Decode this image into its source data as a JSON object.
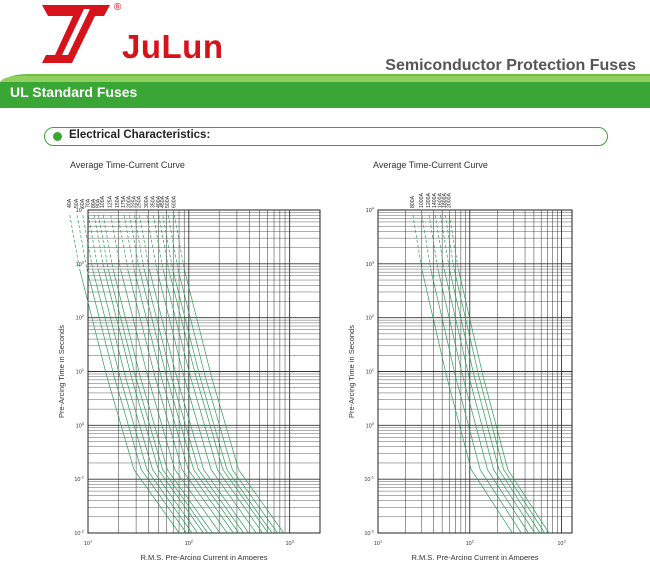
{
  "brand": {
    "name": "JuLun",
    "registered_mark": "®"
  },
  "header": {
    "title": "Semiconductor Protection Fuses"
  },
  "section": {
    "title": "UL Standard Fuses"
  },
  "subsection": {
    "title": "Electrical Characteristics:"
  },
  "colors": {
    "brand_red": "#d6121b",
    "accent_green": "#3aa635",
    "curve_green": "#2e9e55"
  },
  "chart_data": [
    {
      "type": "line",
      "title": "Average Time-Current Curve",
      "xlabel": "R.M.S. Pre-Arcing Current in Amperes",
      "ylabel": "Pre-Arcing Time in Seconds",
      "x_scale": "log",
      "y_scale": "log",
      "xlim": [
        10,
        2000
      ],
      "ylim": [
        0.01,
        10000
      ],
      "x_ticks": [
        {
          "base": "10",
          "exp": "1"
        },
        {
          "base": "10",
          "exp": "2"
        },
        {
          "base": "10",
          "exp": "3"
        }
      ],
      "y_ticks": [
        {
          "base": "10",
          "exp": "4"
        },
        {
          "base": "10",
          "exp": "3"
        },
        {
          "base": "10",
          "exp": "2"
        },
        {
          "base": "10",
          "exp": "1"
        },
        {
          "base": "10",
          "exp": "0"
        },
        {
          "base": "10",
          "exp": "-1"
        },
        {
          "base": "10",
          "exp": "-2"
        }
      ],
      "grid": true,
      "series": [
        {
          "name": "40A",
          "ratio": 0.55
        },
        {
          "name": "50A",
          "ratio": 0.65
        },
        {
          "name": "60A",
          "ratio": 0.74
        },
        {
          "name": "70A",
          "ratio": 0.84
        },
        {
          "name": "80A",
          "ratio": 0.96
        },
        {
          "name": "90A",
          "ratio": 1.06
        },
        {
          "name": "100A",
          "ratio": 1.18
        },
        {
          "name": "125A",
          "ratio": 1.4
        },
        {
          "name": "150A",
          "ratio": 1.65
        },
        {
          "name": "175A",
          "ratio": 1.9
        },
        {
          "name": "200A",
          "ratio": 2.15
        },
        {
          "name": "225A",
          "ratio": 2.4
        },
        {
          "name": "250A",
          "ratio": 2.7
        },
        {
          "name": "300A",
          "ratio": 3.2
        },
        {
          "name": "350A",
          "ratio": 3.7
        },
        {
          "name": "400A",
          "ratio": 4.2
        },
        {
          "name": "450A",
          "ratio": 4.6
        },
        {
          "name": "500A",
          "ratio": 5.2
        },
        {
          "name": "600A",
          "ratio": 6.0
        }
      ]
    },
    {
      "type": "line",
      "title": "Average Time-Current Curve",
      "xlabel": "R.M.S. Pre-Arcing Current in Amperes",
      "ylabel": "Pre-Arcing Time in Seconds",
      "x_scale": "log",
      "y_scale": "log",
      "xlim": [
        10,
        1300
      ],
      "ylim": [
        0.01,
        10000
      ],
      "x_ticks": [
        {
          "base": "10",
          "exp": "1"
        },
        {
          "base": "10",
          "exp": "2"
        },
        {
          "base": "10",
          "exp": "3"
        }
      ],
      "y_ticks": [
        {
          "base": "10",
          "exp": "4"
        },
        {
          "base": "10",
          "exp": "3"
        },
        {
          "base": "10",
          "exp": "2"
        },
        {
          "base": "10",
          "exp": "1"
        },
        {
          "base": "10",
          "exp": "0"
        },
        {
          "base": "10",
          "exp": "-1"
        },
        {
          "base": "10",
          "exp": "-2"
        }
      ],
      "grid": true,
      "series": [
        {
          "name": "800A",
          "ratio": 2.0
        },
        {
          "name": "1000A",
          "ratio": 2.5
        },
        {
          "name": "1200A",
          "ratio": 3.0
        },
        {
          "name": "1400A",
          "ratio": 3.5
        },
        {
          "name": "1600A",
          "ratio": 4.0
        },
        {
          "name": "1800A",
          "ratio": 4.5
        },
        {
          "name": "2000A",
          "ratio": 5.0
        }
      ]
    }
  ]
}
